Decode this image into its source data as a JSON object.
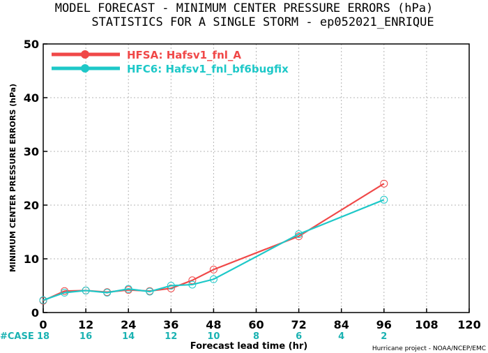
{
  "chart_data": {
    "type": "line",
    "title": "MODEL FORECAST - MINIMUM CENTER PRESSURE ERRORS (hPa)",
    "subtitle": "STATISTICS FOR A SINGLE STORM - ep052021_ENRIQUE",
    "xlabel": "Forecast lead time (hr)",
    "ylabel": "MINIMUM CENTER PRESSURE ERRORS (hPa)",
    "xlim": [
      0,
      120
    ],
    "ylim": [
      0,
      50
    ],
    "x_ticks": [
      0,
      12,
      24,
      36,
      48,
      60,
      72,
      84,
      96,
      108,
      120
    ],
    "y_ticks": [
      0,
      10,
      20,
      30,
      40,
      50
    ],
    "grid": true,
    "legend_position": "top-left",
    "series": [
      {
        "name": "HFSA: Hafsv1_fnl_A",
        "color": "#f04848",
        "x": [
          0,
          6,
          12,
          18,
          24,
          30,
          36,
          42,
          48,
          72,
          96
        ],
        "y": [
          2.2,
          4.0,
          4.1,
          3.8,
          4.2,
          4.0,
          4.5,
          6.0,
          8.0,
          14.2,
          24.0
        ]
      },
      {
        "name": "HFC6: Hafsv1_fnl_bf6bugfix",
        "color": "#1ec8c8",
        "x": [
          0,
          6,
          12,
          18,
          24,
          30,
          36,
          42,
          48,
          72,
          96
        ],
        "y": [
          2.3,
          3.7,
          4.1,
          3.7,
          4.4,
          3.9,
          5.0,
          5.2,
          6.2,
          14.6,
          21.0
        ]
      }
    ],
    "case_counts": {
      "label": "#CASE",
      "x": [
        0,
        12,
        24,
        36,
        48,
        60,
        72,
        84,
        96
      ],
      "values": [
        "18",
        "16",
        "14",
        "12",
        "10",
        "8",
        "6",
        "4",
        "2"
      ]
    },
    "credit": "Hurricane project - NOAA/NCEP/EMC"
  }
}
